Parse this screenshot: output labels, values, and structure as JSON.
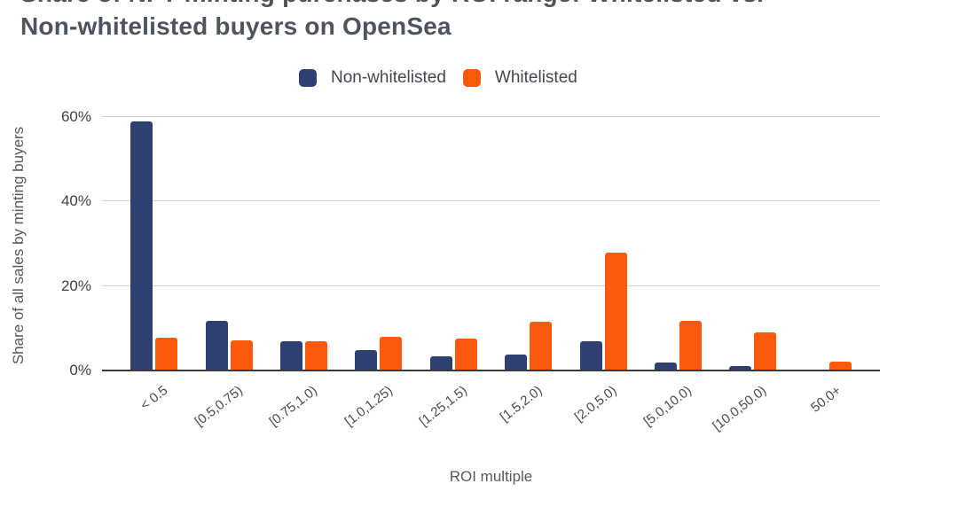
{
  "title": {
    "line1": "Share of NFT minting purchases by ROI range: Whitelisted vs.",
    "line2": "Non-whitelisted buyers on OpenSea"
  },
  "legend": {
    "items": [
      {
        "label": "Non-whitelisted",
        "color": "#2e4071"
      },
      {
        "label": "Whitelisted",
        "color": "#fb5a0d"
      }
    ]
  },
  "axes": {
    "x_title": "ROI multiple",
    "y_title": "Share of all sales by minting buyers",
    "y_tick_labels": [
      "0%",
      "20%",
      "40%",
      "60%"
    ]
  },
  "chart_data": {
    "type": "bar",
    "title": "Share of NFT minting purchases by ROI range: Whitelisted vs. Non-whitelisted buyers on OpenSea",
    "categories": [
      "< 0.5",
      "[0.5,0.75)",
      "[0.75,1.0)",
      "[1.0,1.25)",
      "[1.25,1.5)",
      "[1.5,2.0)",
      "[2.0,5.0)",
      "[5.0,10.0)",
      "[10.0,50.0)",
      "50.0+"
    ],
    "series": [
      {
        "name": "Non-whitelisted",
        "color": "#2e4071",
        "values": [
          59,
          11.7,
          7,
          4.8,
          3.3,
          3.8,
          6.9,
          1.8,
          1.1,
          0
        ]
      },
      {
        "name": "Whitelisted",
        "color": "#fb5a0d",
        "values": [
          7.7,
          7.2,
          6.9,
          7.9,
          7.6,
          11.5,
          27.9,
          11.7,
          9,
          2.2
        ]
      }
    ],
    "xlabel": "ROI multiple",
    "ylabel": "Share of all sales by minting buyers",
    "ylim": [
      0,
      65.5
    ],
    "yticks_pct": [
      0,
      20,
      40,
      60
    ],
    "grid": true,
    "legend_position": "top"
  },
  "colors": {
    "non_whitelisted": "#2e4071",
    "whitelisted": "#fb5a0d",
    "gridline": "#d2d2d2",
    "axis_line": "#3b3a3e",
    "title_text": "#4d545d",
    "tick_text": "#4b4b4b",
    "axis_title_text": "#57595b"
  }
}
